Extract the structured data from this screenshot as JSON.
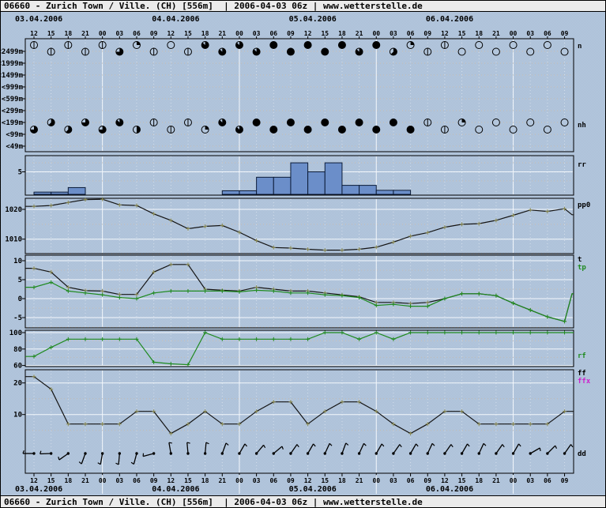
{
  "header": {
    "full": "06660 - Zurich Town / Ville. (CH) [556m]  | 2006-04-03 06z | www.wetterstelle.de"
  },
  "footer": {
    "full": "06660 - Zurich Town / Ville. (CH) [556m]  | 2006-04-03 06z | www.wetterstelle.de"
  },
  "colors": {
    "background": "#aec2da",
    "panel_border": "#000000",
    "grid_major": "#f4f8fc",
    "grid_minor": "#c9bdb0",
    "bar_fill": "#6b8ec9",
    "bar_stroke": "#0c1c38",
    "line_black": "#141414",
    "line_green": "#1f8a1f",
    "marker_olive": "#8a8a52",
    "magenta": "#cc22cc",
    "symbol_open_fill": "#b3c6dc"
  },
  "chart_data": {
    "type": "line",
    "subtype": "meteogram",
    "station": "06660 - Zurich Town / Ville. (CH) [556m]",
    "run": "2006-04-03 06z",
    "source": "www.wetterstelle.de",
    "x_axis": {
      "dates": [
        "03.04.2006",
        "04.04.2006",
        "05.04.2006",
        "06.04.2006"
      ],
      "time_labels": [
        "12",
        "15",
        "18",
        "21",
        "00",
        "03",
        "06",
        "09",
        "12",
        "15",
        "18",
        "21",
        "00",
        "03",
        "06",
        "09",
        "12",
        "15",
        "18",
        "21",
        "00",
        "03",
        "06",
        "09",
        "12",
        "15",
        "18",
        "21",
        "00",
        "03",
        "06",
        "09"
      ],
      "step_hours": 3
    },
    "cloud_panel": {
      "height_labels": [
        "<2499m",
        "<1999m",
        "<1499m",
        "<999m",
        "<599m",
        "<299m",
        "<199m",
        "<99m",
        "<49m"
      ],
      "n_label": "n",
      "nh_label": "nh",
      "n_oktas": [
        1,
        1,
        1,
        1,
        1,
        6,
        2,
        1,
        0,
        1,
        7,
        7,
        7,
        7,
        8,
        8,
        8,
        8,
        8,
        7,
        8,
        5,
        2,
        1,
        1,
        0,
        0,
        0,
        0,
        0,
        0,
        0
      ],
      "nh_oktas": [
        6,
        5,
        5,
        6,
        6,
        7,
        4,
        1,
        1,
        1,
        2,
        7,
        7,
        8,
        8,
        8,
        8,
        8,
        8,
        8,
        8,
        8,
        8,
        1,
        1,
        2,
        0,
        0,
        0,
        0,
        0,
        0
      ]
    },
    "rr_panel": {
      "label": "rr",
      "ytick_labels": [
        "5"
      ],
      "values": [
        0.5,
        0.5,
        1.5,
        0,
        0,
        0,
        0,
        0,
        0,
        0,
        0,
        0.8,
        0.8,
        3.8,
        3.8,
        7,
        5,
        7,
        2,
        2,
        0.9,
        0.9,
        0,
        0,
        0,
        0,
        0,
        0,
        0,
        0,
        0,
        0
      ]
    },
    "pp0_panel": {
      "label": "pp0",
      "ytick_labels": [
        "1020",
        "1010"
      ],
      "yticks": [
        1020,
        1010
      ],
      "values": [
        1021,
        1021.3,
        1022.3,
        1023.3,
        1023.4,
        1021.5,
        1021.3,
        1018.5,
        1016.3,
        1013.5,
        1014.3,
        1014.6,
        1012.3,
        1009.5,
        1007.2,
        1007,
        1006.6,
        1006.3,
        1006.3,
        1006.6,
        1007.3,
        1009,
        1011,
        1012.2,
        1014,
        1015,
        1015.2,
        1016.3,
        1018,
        1019.8,
        1019.3,
        1020.2,
        1018.2
      ]
    },
    "t_panel": {
      "labels": [
        "t",
        "tp"
      ],
      "ytick_labels": [
        "10",
        "5",
        "0",
        "-5"
      ],
      "yticks": [
        10,
        5,
        0,
        -5
      ],
      "t": [
        8,
        7,
        3,
        2.1,
        2,
        1.1,
        1.1,
        7,
        9,
        9,
        2.5,
        2.2,
        2,
        3,
        2.5,
        2,
        2,
        1.5,
        1,
        0.5,
        -1,
        -1,
        -1.3,
        -1,
        0,
        1.3,
        1.3,
        0.8,
        -1.2,
        -3,
        -4.8,
        -6,
        1.3
      ],
      "tp": [
        3,
        4.3,
        2,
        1.5,
        1,
        0.3,
        0,
        1.5,
        2,
        2,
        2,
        2,
        1.8,
        2.2,
        2,
        1.5,
        1.5,
        1,
        0.8,
        0.3,
        -1.8,
        -1.5,
        -2,
        -2,
        0,
        1.3,
        1.3,
        0.8,
        -1.2,
        -3,
        -4.8,
        -6,
        1.3
      ]
    },
    "rf_panel": {
      "label": "rf",
      "ytick_labels": [
        "100",
        "80",
        "60"
      ],
      "yticks": [
        100,
        80,
        60
      ],
      "values": [
        71,
        82,
        92,
        92,
        92,
        92,
        92,
        64,
        62,
        61,
        100,
        92,
        92,
        92,
        92,
        92,
        92,
        100,
        100,
        92,
        100,
        92,
        100,
        100,
        100,
        100,
        100,
        100,
        100,
        100,
        100,
        100,
        100
      ]
    },
    "ff_panel": {
      "labels": [
        "ff",
        "ffx"
      ],
      "ytick_labels": [
        "20",
        "10"
      ],
      "yticks": [
        20,
        10
      ],
      "values": [
        22,
        18,
        7,
        7,
        7,
        7,
        11,
        11,
        4,
        7,
        11,
        7,
        7,
        11,
        14,
        14,
        7,
        11,
        14,
        14,
        11,
        7,
        4,
        7,
        11,
        11,
        7,
        7,
        7,
        7,
        7,
        11
      ]
    },
    "dd_panel": {
      "label": "dd",
      "directions_deg": [
        270,
        268,
        235,
        200,
        190,
        185,
        195,
        255,
        350,
        355,
        5,
        20,
        30,
        40,
        50,
        35,
        30,
        25,
        20,
        25,
        30,
        35,
        30,
        25,
        35,
        30,
        25,
        35,
        30,
        60,
        45,
        35
      ]
    }
  }
}
